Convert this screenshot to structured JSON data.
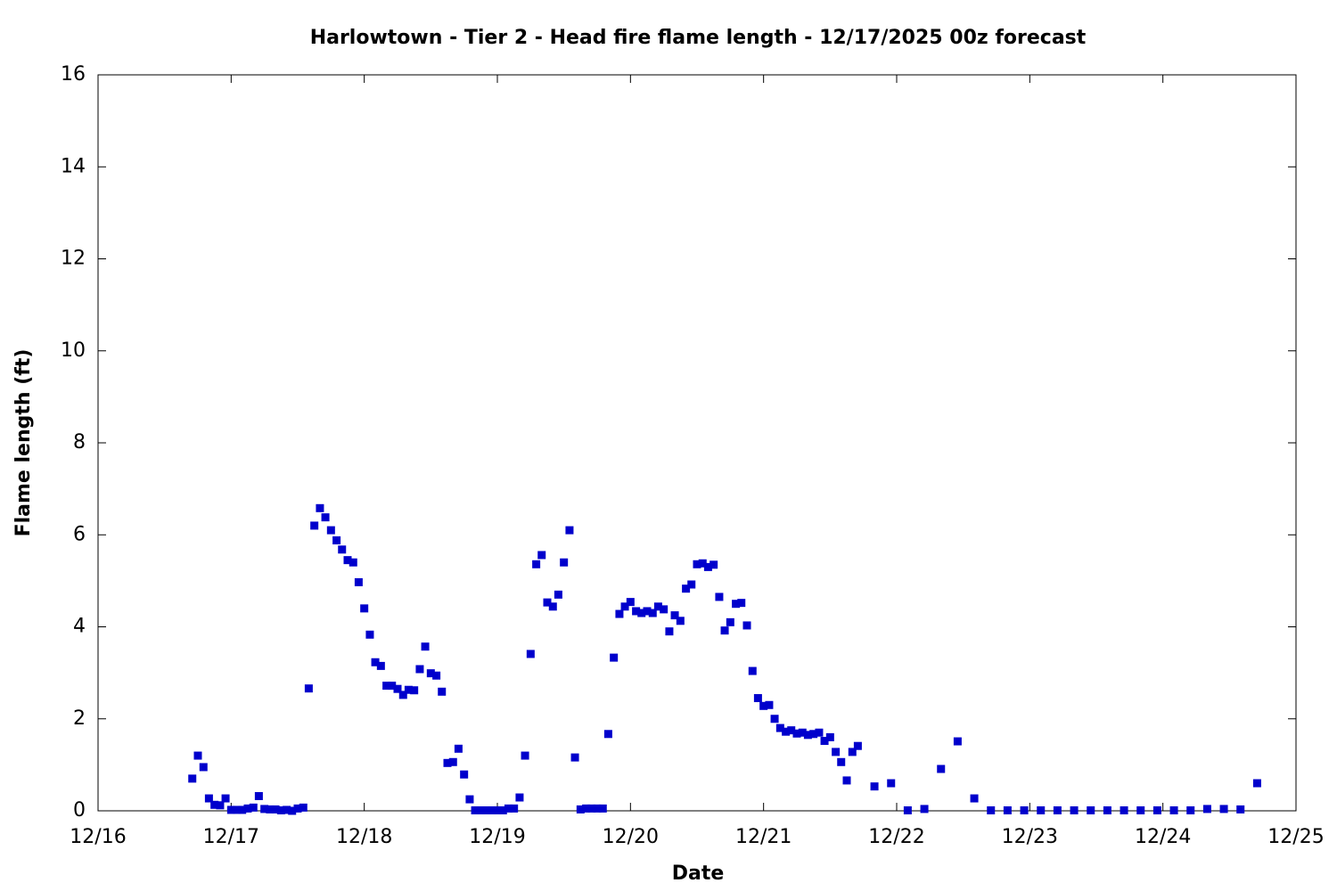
{
  "chart_data": {
    "type": "scatter",
    "title": "Harlowtown - Tier 2 - Head fire flame length - 12/17/2025 00z forecast",
    "x_label": "Date",
    "y_label": "Flame length (ft)",
    "color": "#0000cc",
    "grid": false,
    "xlim": [
      16,
      25
    ],
    "xticks": [
      {
        "value": 16,
        "label": "12/16"
      },
      {
        "value": 17,
        "label": "12/17"
      },
      {
        "value": 18,
        "label": "12/18"
      },
      {
        "value": 19,
        "label": "12/19"
      },
      {
        "value": 20,
        "label": "12/20"
      },
      {
        "value": 21,
        "label": "12/21"
      },
      {
        "value": 22,
        "label": "12/22"
      },
      {
        "value": 23,
        "label": "12/23"
      },
      {
        "value": 24,
        "label": "12/24"
      },
      {
        "value": 25,
        "label": "12/25"
      }
    ],
    "ylim": [
      0,
      16
    ],
    "yticks": [
      0,
      2,
      4,
      6,
      8,
      10,
      12,
      14,
      16
    ],
    "x": [
      16.708,
      16.75,
      16.792,
      16.833,
      16.875,
      16.917,
      16.958,
      17,
      17.042,
      17.083,
      17.125,
      17.167,
      17.208,
      17.25,
      17.292,
      17.333,
      17.375,
      17.417,
      17.458,
      17.5,
      17.542,
      17.583,
      17.625,
      17.667,
      17.708,
      17.75,
      17.792,
      17.833,
      17.875,
      17.917,
      17.958,
      18,
      18.042,
      18.083,
      18.125,
      18.167,
      18.208,
      18.25,
      18.292,
      18.333,
      18.375,
      18.417,
      18.458,
      18.5,
      18.542,
      18.583,
      18.625,
      18.667,
      18.708,
      18.75,
      18.792,
      18.833,
      18.875,
      18.917,
      18.958,
      19,
      19.042,
      19.083,
      19.125,
      19.167,
      19.208,
      19.25,
      19.292,
      19.333,
      19.375,
      19.417,
      19.458,
      19.5,
      19.542,
      19.583,
      19.625,
      19.667,
      19.708,
      19.75,
      19.792,
      19.833,
      19.875,
      19.917,
      19.958,
      20,
      20.042,
      20.083,
      20.125,
      20.167,
      20.208,
      20.25,
      20.292,
      20.333,
      20.375,
      20.417,
      20.458,
      20.5,
      20.542,
      20.583,
      20.625,
      20.667,
      20.708,
      20.75,
      20.792,
      20.833,
      20.875,
      20.917,
      20.958,
      21,
      21.042,
      21.083,
      21.125,
      21.167,
      21.208,
      21.25,
      21.292,
      21.333,
      21.375,
      21.417,
      21.458,
      21.5,
      21.542,
      21.583,
      21.625,
      21.667,
      21.708,
      21.833,
      21.958,
      22.083,
      22.208,
      22.333,
      22.458,
      22.583,
      22.708,
      22.833,
      22.958,
      23.083,
      23.208,
      23.333,
      23.458,
      23.583,
      23.708,
      23.833,
      23.958,
      24.083,
      24.208,
      24.333,
      24.458,
      24.583,
      24.708
    ],
    "values": [
      0.7,
      1.2,
      0.95,
      0.27,
      0.13,
      0.12,
      0.27,
      0.02,
      0.02,
      0.02,
      0.05,
      0.07,
      0.32,
      0.04,
      0.03,
      0.03,
      0.01,
      0.02,
      0,
      0.05,
      0.07,
      2.66,
      6.2,
      6.58,
      6.38,
      6.1,
      5.88,
      5.68,
      5.45,
      5.4,
      4.97,
      4.4,
      3.83,
      3.23,
      3.15,
      2.72,
      2.72,
      2.65,
      2.52,
      2.63,
      2.62,
      3.08,
      3.57,
      2.99,
      2.94,
      2.59,
      1.04,
      1.06,
      1.35,
      0.79,
      0.25,
      0.01,
      0.01,
      0.01,
      0.01,
      0.01,
      0.01,
      0.05,
      0.05,
      0.29,
      1.2,
      3.41,
      5.36,
      5.56,
      4.53,
      4.44,
      4.7,
      5.4,
      6.1,
      1.16,
      0.03,
      0.05,
      0.05,
      0.05,
      0.05,
      1.67,
      3.33,
      4.28,
      4.44,
      4.54,
      4.34,
      4.3,
      4.34,
      4.3,
      4.44,
      4.38,
      3.9,
      4.25,
      4.13,
      4.83,
      4.92,
      5.36,
      5.38,
      5.3,
      5.35,
      4.65,
      3.92,
      4.1,
      4.5,
      4.52,
      4.03,
      3.04,
      2.45,
      2.28,
      2.3,
      2.0,
      1.8,
      1.72,
      1.75,
      1.68,
      1.7,
      1.65,
      1.67,
      1.7,
      1.52,
      1.6,
      1.28,
      1.06,
      0.66,
      1.28,
      1.41,
      0.53,
      0.6,
      0.01,
      0.04,
      0.91,
      1.51,
      0.27,
      0.01,
      0.01,
      0.01,
      0.01,
      0.01,
      0.01,
      0.01,
      0.01,
      0.01,
      0.01,
      0.01,
      0.01,
      0.01,
      0.04,
      0.04,
      0.03,
      0.6
    ]
  }
}
